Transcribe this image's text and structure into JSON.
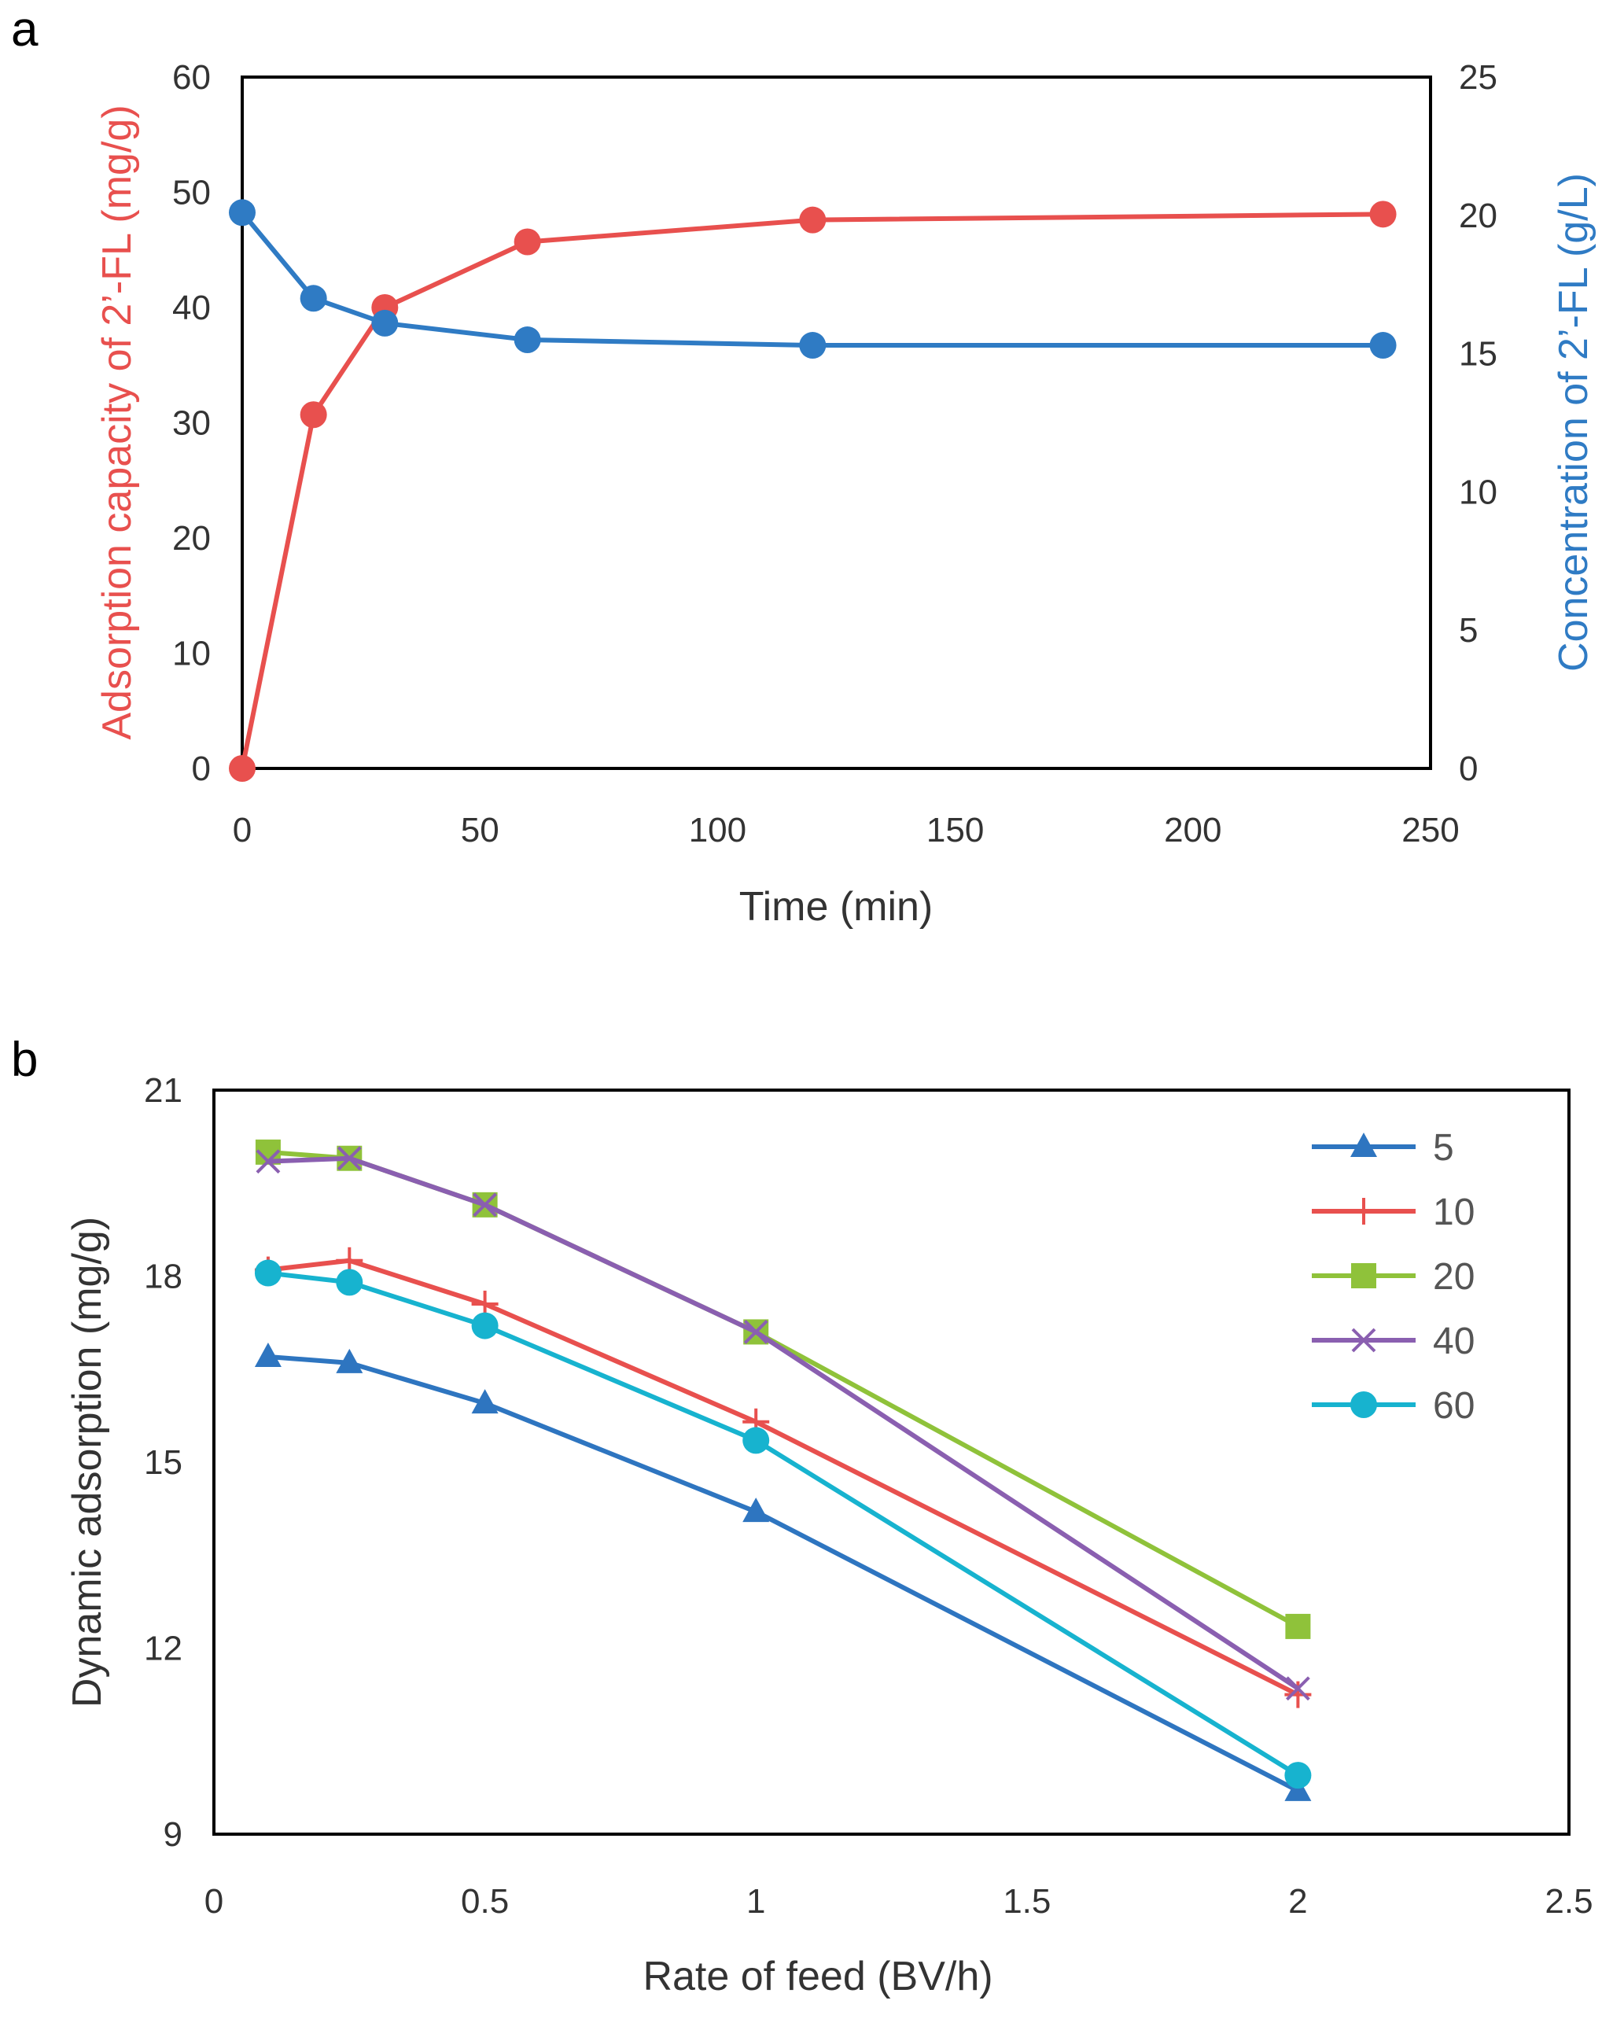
{
  "chart_data": [
    {
      "panel_label": "a",
      "type": "line",
      "xlabel": "Time (min)",
      "ylabel": "Adsorption capacity of 2’-FL (mg/g)",
      "y2label": "Concentration of 2’-FL (g/L)",
      "xlim": [
        0,
        250
      ],
      "ylim": [
        0,
        60
      ],
      "y2lim": [
        0,
        25
      ],
      "xticks": [
        "0",
        "50",
        "100",
        "150",
        "200",
        "250"
      ],
      "yticks": [
        "0",
        "10",
        "20",
        "30",
        "40",
        "50",
        "60"
      ],
      "y2ticks": [
        "0",
        "5",
        "10",
        "15",
        "20",
        "25"
      ],
      "grid": false,
      "series": [
        {
          "name": "Adsorption capacity",
          "axis": "left",
          "color": "#e8504e",
          "marker": "circle",
          "x": [
            0,
            15,
            30,
            60,
            120,
            240
          ],
          "values": [
            0,
            30.7,
            40.0,
            45.7,
            47.6,
            48.1
          ]
        },
        {
          "name": "Concentration",
          "axis": "right",
          "color": "#2f7bc4",
          "marker": "circle",
          "x": [
            0,
            15,
            30,
            60,
            120,
            240
          ],
          "values": [
            20.1,
            17.0,
            16.1,
            15.5,
            15.3,
            15.3
          ]
        }
      ]
    },
    {
      "panel_label": "b",
      "type": "line",
      "xlabel": "Rate of feed (BV/h)",
      "ylabel": "Dynamic adsorption (mg/g)",
      "xlim": [
        0,
        2.5
      ],
      "ylim": [
        9,
        21
      ],
      "xticks": [
        "0",
        "0.5",
        "1",
        "1.5",
        "2",
        "2.5"
      ],
      "yticks": [
        "9",
        "12",
        "15",
        "18",
        "21"
      ],
      "grid": false,
      "legend_position": "top-right",
      "x": [
        0.1,
        0.25,
        0.5,
        1,
        2
      ],
      "series": [
        {
          "name": "5",
          "color": "#2e75c0",
          "marker": "triangle",
          "values": [
            16.7,
            16.6,
            15.95,
            14.2,
            9.7
          ]
        },
        {
          "name": "10",
          "color": "#e8504e",
          "marker": "plus",
          "values": [
            18.1,
            18.25,
            17.55,
            15.65,
            11.25
          ]
        },
        {
          "name": "20",
          "color": "#8fc23a",
          "marker": "square",
          "values": [
            20.0,
            19.9,
            19.15,
            17.1,
            12.35
          ]
        },
        {
          "name": "40",
          "color": "#8a5fb0",
          "marker": "x",
          "values": [
            19.85,
            19.9,
            19.15,
            17.1,
            11.35
          ]
        },
        {
          "name": "60",
          "color": "#17b3cf",
          "marker": "circle",
          "values": [
            18.05,
            17.9,
            17.2,
            15.35,
            9.95
          ]
        }
      ]
    }
  ]
}
